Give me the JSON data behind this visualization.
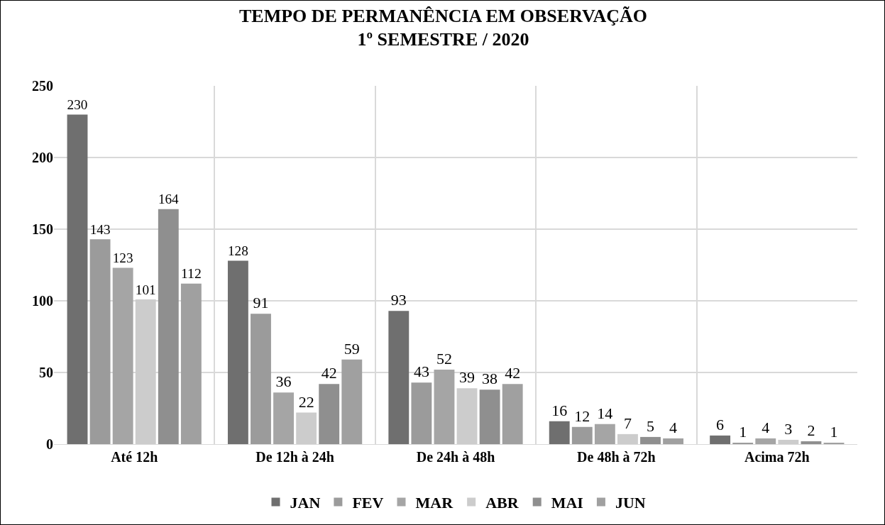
{
  "chart_data": {
    "type": "bar",
    "title": "TEMPO DE PERMANÊNCIA EM OBSERVAÇÃO\n1º SEMESTRE / 2020",
    "categories": [
      "Até 12h",
      "De 12h à 24h",
      "De 24h à 48h",
      "De 48h à 72h",
      "Acima 72h"
    ],
    "series": [
      {
        "name": "JAN",
        "color": "#6f6f6f",
        "values": [
          230,
          128,
          93,
          16,
          6
        ]
      },
      {
        "name": "FEV",
        "color": "#9b9b9b",
        "values": [
          143,
          91,
          43,
          12,
          1
        ]
      },
      {
        "name": "MAR",
        "color": "#a5a5a5",
        "values": [
          123,
          36,
          52,
          14,
          4
        ]
      },
      {
        "name": "ABR",
        "color": "#cccccc",
        "values": [
          101,
          22,
          39,
          7,
          3
        ]
      },
      {
        "name": "MAI",
        "color": "#8f8f8f",
        "values": [
          164,
          42,
          38,
          5,
          2
        ]
      },
      {
        "name": "JUN",
        "color": "#a0a0a0",
        "values": [
          112,
          59,
          42,
          4,
          1
        ]
      }
    ],
    "ylim": [
      0,
      250
    ],
    "yticks": [
      0,
      50,
      100,
      150,
      200,
      250
    ],
    "grid": true,
    "legend": "bottom",
    "data_labels": true
  }
}
